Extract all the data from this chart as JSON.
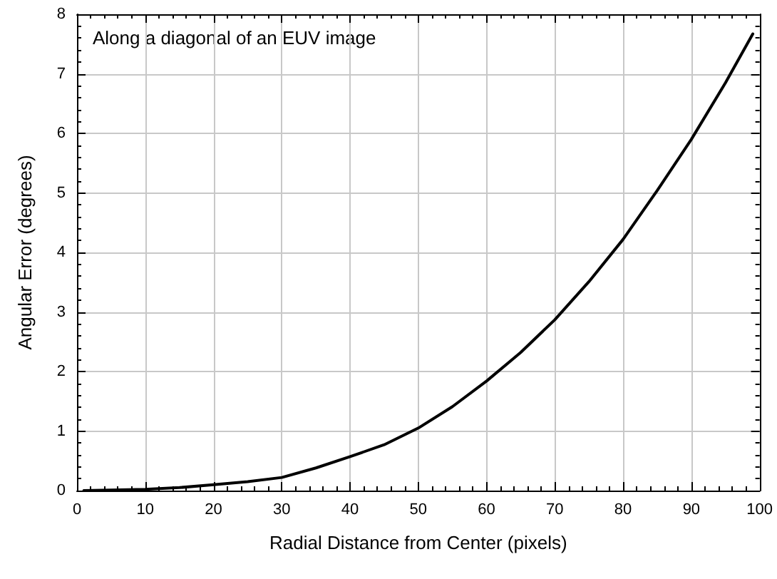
{
  "chart_data": {
    "type": "line",
    "xlabel": "Radial Distance from Center (pixels)",
    "ylabel": "Angular Error (degrees)",
    "annotations": [
      "Along a diagonal of an EUV image"
    ],
    "x": [
      1,
      5,
      10,
      15,
      20,
      25,
      30,
      35,
      40,
      45,
      50,
      55,
      60,
      65,
      70,
      75,
      80,
      85,
      90,
      95,
      99
    ],
    "series": [
      {
        "color": "#000000",
        "values": [
          0,
          0.01,
          0.02,
          0.05,
          0.1,
          0.15,
          0.22,
          0.38,
          0.57,
          0.77,
          1.05,
          1.41,
          1.84,
          2.32,
          2.87,
          3.51,
          4.22,
          5.04,
          5.9,
          6.85,
          7.67
        ]
      }
    ],
    "xlim": [
      0,
      100
    ],
    "xticks": [
      0,
      10,
      20,
      30,
      40,
      50,
      60,
      70,
      80,
      90,
      100
    ],
    "ylim": [
      0,
      8
    ],
    "yticks": [
      0,
      1,
      2,
      3,
      4,
      5,
      6,
      7,
      8
    ],
    "grid": true,
    "marker": "none",
    "line_style": "solid"
  }
}
